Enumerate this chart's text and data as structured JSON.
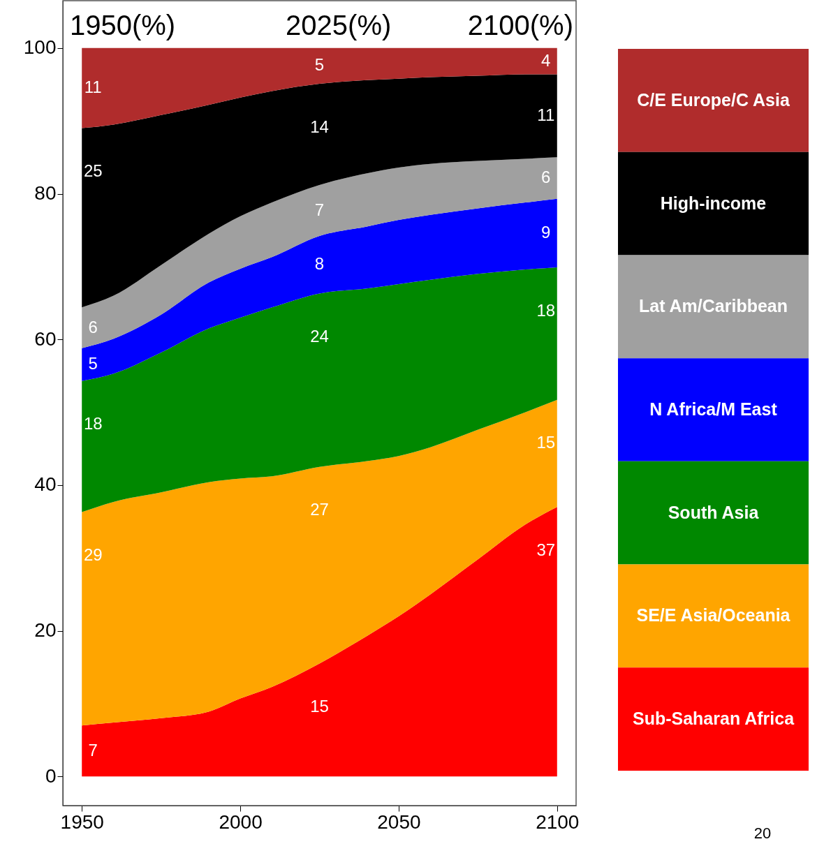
{
  "chart_data": {
    "type": "area",
    "stacked": true,
    "legend": "right",
    "grid": false,
    "x": [
      1950,
      1960,
      1975,
      1990,
      2000,
      2010,
      2025,
      2040,
      2050,
      2060,
      2075,
      2090,
      2100
    ],
    "xlim": [
      1944,
      2106
    ],
    "xticks": [
      1950,
      2000,
      2050,
      2100
    ],
    "ylim": [
      -4,
      106.5
    ],
    "yticks": [
      0,
      20,
      40,
      60,
      80,
      100
    ],
    "series": [
      {
        "name": "Sub-Saharan Africa",
        "color": "#ff0000",
        "values": [
          7.0,
          7.4,
          8.0,
          8.9,
          10.7,
          12.3,
          15.5,
          19.3,
          22.0,
          25.0,
          29.8,
          34.6,
          37.0
        ],
        "value_labels": [
          "7",
          null,
          null,
          null,
          null,
          null,
          "15",
          null,
          null,
          null,
          null,
          null,
          "37"
        ]
      },
      {
        "name": "SE/E Asia/Oceania",
        "color": "#ffa500",
        "values": [
          29.3,
          30.3,
          31.0,
          31.5,
          30.2,
          28.9,
          27.0,
          24.0,
          22.0,
          20.2,
          17.8,
          15.4,
          14.7
        ],
        "value_labels": [
          "29",
          null,
          null,
          null,
          null,
          null,
          "27",
          null,
          null,
          null,
          null,
          null,
          "15"
        ]
      },
      {
        "name": "South Asia",
        "color": "#008800",
        "values": [
          18.0,
          17.6,
          19.2,
          21.1,
          22.1,
          23.2,
          23.8,
          23.7,
          23.6,
          23.0,
          21.4,
          19.6,
          18.2
        ],
        "value_labels": [
          "18",
          null,
          null,
          null,
          null,
          null,
          "24",
          null,
          null,
          null,
          null,
          null,
          "18"
        ]
      },
      {
        "name": "N Africa/M East",
        "color": "#0000ff",
        "values": [
          4.5,
          4.8,
          5.2,
          6.3,
          6.7,
          6.9,
          7.9,
          8.5,
          8.8,
          8.9,
          9.0,
          9.2,
          9.4
        ],
        "value_labels": [
          "5",
          null,
          null,
          null,
          null,
          null,
          "8",
          null,
          null,
          null,
          null,
          null,
          "9"
        ]
      },
      {
        "name": "Lat Am/Caribbean",
        "color": "#a0a0a0",
        "values": [
          5.6,
          5.9,
          6.8,
          6.7,
          7.2,
          7.5,
          7.0,
          7.3,
          7.2,
          7.0,
          6.5,
          6.0,
          5.7
        ],
        "value_labels": [
          "6",
          null,
          null,
          null,
          null,
          null,
          "7",
          null,
          null,
          null,
          null,
          null,
          "6"
        ]
      },
      {
        "name": "High-income",
        "color": "#000000",
        "values": [
          24.6,
          23.5,
          20.6,
          17.7,
          16.3,
          15.3,
          13.9,
          12.8,
          12.2,
          11.9,
          11.7,
          11.6,
          11.4
        ],
        "value_labels": [
          "25",
          null,
          null,
          null,
          null,
          null,
          "14",
          null,
          null,
          null,
          null,
          null,
          "11"
        ]
      },
      {
        "name": "C/E Europe/C Asia",
        "color": "#b02c2c",
        "values": [
          11.0,
          10.5,
          9.2,
          7.8,
          6.8,
          5.9,
          4.9,
          4.4,
          4.2,
          4.0,
          3.8,
          3.6,
          3.6
        ],
        "value_labels": [
          "11",
          null,
          null,
          null,
          null,
          null,
          "5",
          null,
          null,
          null,
          null,
          null,
          "4"
        ]
      }
    ],
    "annotations": [
      "1950(%)",
      "2025(%)",
      "2100(%)",
      "20"
    ]
  }
}
